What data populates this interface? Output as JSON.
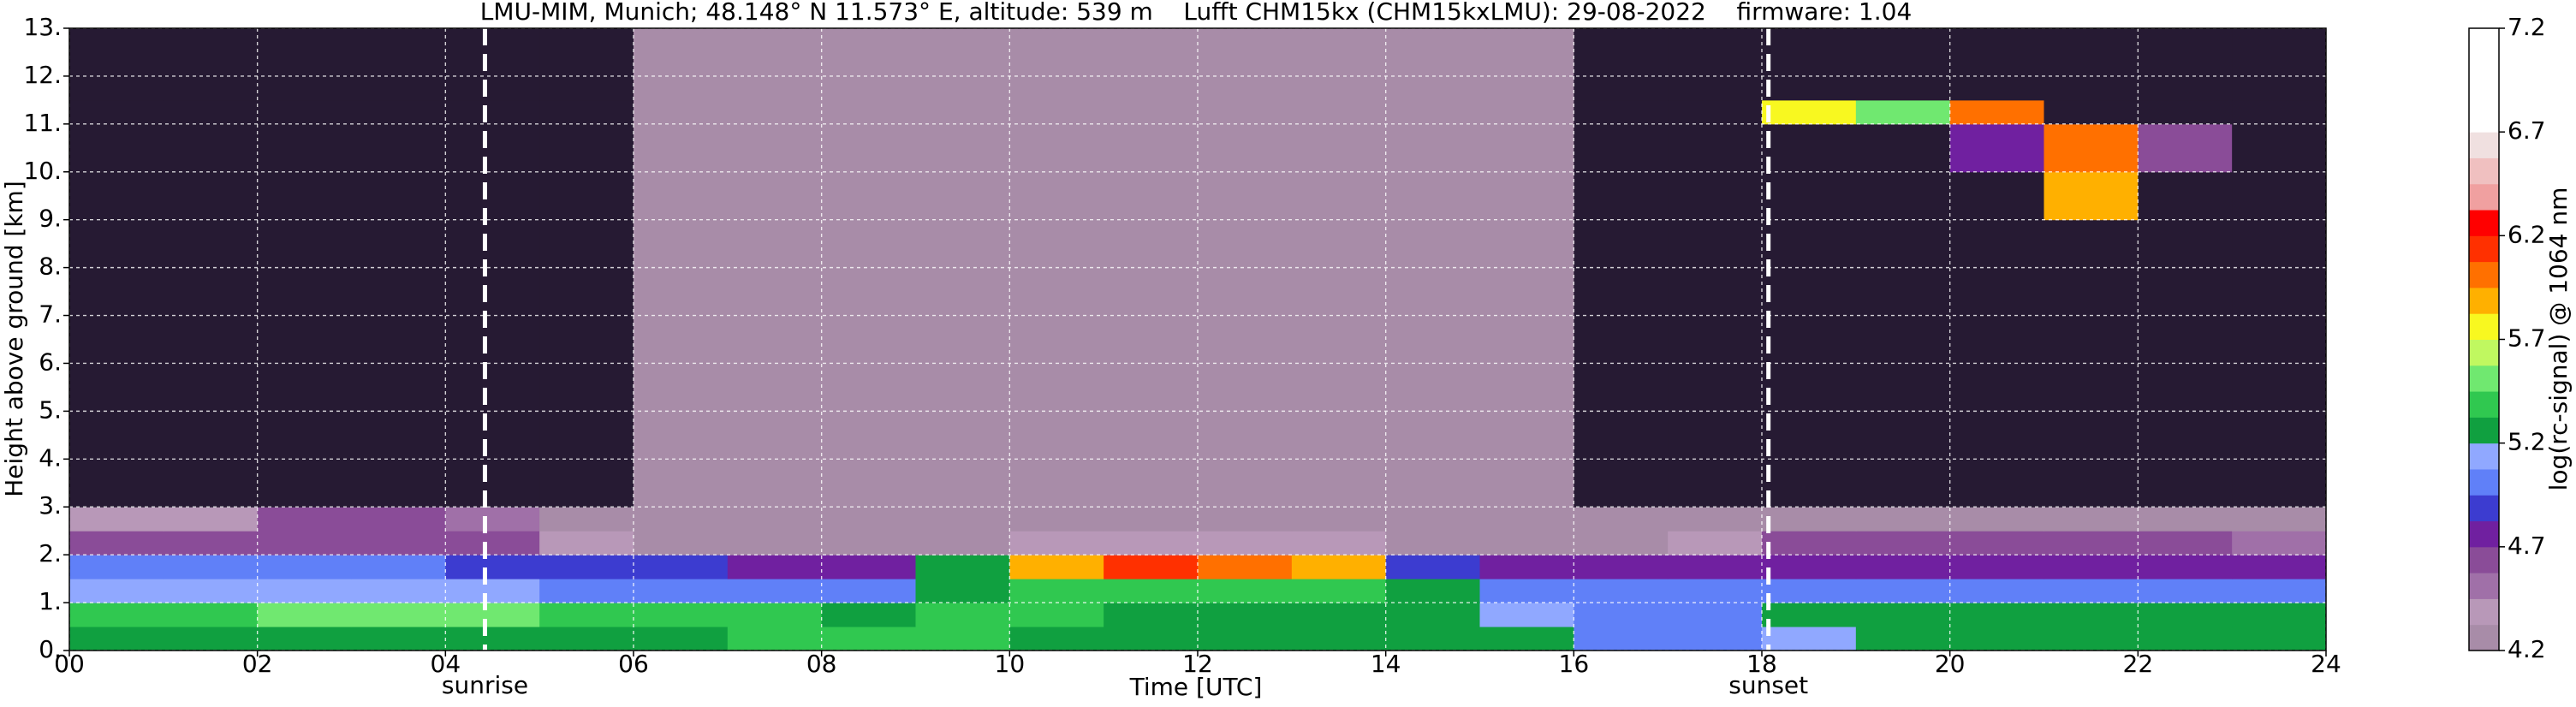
{
  "chart_data": {
    "type": "heatmap",
    "title": "LMU-MIM, Munich; 48.148° N 11.573° E, altitude: 539 m    Lufft CHM15kx (CHM15kxLMU): 29-08-2022    firmware: 1.04",
    "xlabel": "Time [UTC]",
    "ylabel": "Height above ground [km]",
    "colorbar_label": "log(rc-signal) @ 1064 nm",
    "xlim": [
      0,
      24
    ],
    "ylim": [
      0,
      13
    ],
    "xticks": [
      {
        "value": 0,
        "label": "00"
      },
      {
        "value": 2,
        "label": "02"
      },
      {
        "value": 4,
        "label": "04"
      },
      {
        "value": 6,
        "label": "06"
      },
      {
        "value": 8,
        "label": "08"
      },
      10,
      12,
      14,
      16,
      18,
      20,
      22,
      24
    ],
    "yticks": [
      {
        "value": 0,
        "label": "0."
      },
      {
        "value": 1,
        "label": "1."
      },
      {
        "value": 2,
        "label": "2."
      },
      {
        "value": 3,
        "label": "3."
      },
      {
        "value": 4,
        "label": "4."
      },
      {
        "value": 5,
        "label": "5."
      },
      {
        "value": 6,
        "label": "6."
      },
      {
        "value": 7,
        "label": "7."
      },
      {
        "value": 8,
        "label": "8."
      },
      {
        "value": 9,
        "label": "9."
      },
      {
        "value": 10,
        "label": "10."
      },
      {
        "value": 11,
        "label": "11."
      },
      {
        "value": 12,
        "label": "12."
      },
      {
        "value": 13,
        "label": "13."
      }
    ],
    "grid": true,
    "annotations": [
      {
        "text": "sunrise",
        "x": 4.42
      },
      {
        "text": "sunset",
        "x": 18.07
      }
    ],
    "clim": [
      4.2,
      7.2
    ],
    "colorbar_ticks": [
      4.2,
      4.7,
      5.2,
      5.7,
      6.2,
      6.7,
      7.2
    ],
    "under_color": "#261a33",
    "colors": [
      "#a88ca8",
      "#b898b8",
      "#a070a8",
      "#8a4c98",
      "#7020a0",
      "#3c3cd0",
      "#6080f8",
      "#90a8ff",
      "#10a040",
      "#30c850",
      "#70e870",
      "#c0f860",
      "#f8f820",
      "#ffb000",
      "#ff7000",
      "#ff3000",
      "#ff0000",
      "#f0a0a0",
      "#f0c0c0",
      "#f0e0e0",
      "#ffffff",
      "#ffffff",
      "#ffffff",
      "#ffffff"
    ],
    "x": [
      0,
      1,
      2,
      3,
      4,
      5,
      6,
      7,
      8,
      9,
      10,
      11,
      12,
      13,
      14,
      15,
      16,
      17,
      18,
      19,
      20,
      21,
      22,
      23,
      24
    ],
    "y": [
      0,
      0.5,
      1,
      1.5,
      2,
      2.5,
      3,
      9,
      10,
      11,
      11.5,
      13
    ],
    "z": [
      [
        5.3,
        5.3,
        5.3,
        5.3,
        5.3,
        5.3,
        5.3,
        5.35,
        5.4,
        5.35,
        5.3,
        5.3,
        5.3,
        5.3,
        5.25,
        5.2,
        5.05,
        5.0,
        5.1,
        5.25,
        5.25,
        5.25,
        5.3,
        5.3
      ],
      [
        5.35,
        5.35,
        5.45,
        5.5,
        5.45,
        5.4,
        5.35,
        5.35,
        5.3,
        5.35,
        5.35,
        5.3,
        5.3,
        5.3,
        5.2,
        5.1,
        5.05,
        5.0,
        5.2,
        5.3,
        5.3,
        5.3,
        5.25,
        5.25
      ],
      [
        5.1,
        5.1,
        5.15,
        5.15,
        5.1,
        5.0,
        4.95,
        4.95,
        5.0,
        5.3,
        5.35,
        5.4,
        5.4,
        5.4,
        5.2,
        5.0,
        4.95,
        5.0,
        5.05,
        5.0,
        5.0,
        5.0,
        5.0,
        5.0
      ],
      [
        4.95,
        4.95,
        4.95,
        4.95,
        4.9,
        4.85,
        4.85,
        4.8,
        4.8,
        5.3,
        5.9,
        6.1,
        6.0,
        5.9,
        4.9,
        4.8,
        4.75,
        4.8,
        4.75,
        4.75,
        4.7,
        4.7,
        4.7,
        4.7
      ],
      [
        4.65,
        4.6,
        4.6,
        4.6,
        4.6,
        4.4,
        4.3,
        4.3,
        4.3,
        4.3,
        4.35,
        4.4,
        4.4,
        4.35,
        4.3,
        4.3,
        4.3,
        4.4,
        4.6,
        4.6,
        4.6,
        4.6,
        4.6,
        4.55
      ],
      [
        4.35,
        4.35,
        4.6,
        4.6,
        4.5,
        4.3,
        4.25,
        4.25,
        4.25,
        4.25,
        4.25,
        4.3,
        4.3,
        4.3,
        4.25,
        4.2,
        4.2,
        4.2,
        4.3,
        4.3,
        4.3,
        4.3,
        4.3,
        4.3
      ],
      [
        4.1,
        4.1,
        4.1,
        4.1,
        4.1,
        4.15,
        4.2,
        4.2,
        4.2,
        4.3,
        4.25,
        4.3,
        4.3,
        4.3,
        4.2,
        4.2,
        4.15,
        4.1,
        4.1,
        4.1,
        4.1,
        4.1,
        4.1,
        4.1
      ],
      [
        4.1,
        4.1,
        4.1,
        4.1,
        4.1,
        4.15,
        4.2,
        4.2,
        4.2,
        4.3,
        4.25,
        4.3,
        4.3,
        4.3,
        4.2,
        4.2,
        4.15,
        4.1,
        4.1,
        4.1,
        4.1,
        5.9,
        4.1,
        4.1
      ],
      [
        4.1,
        4.1,
        4.1,
        4.1,
        4.1,
        4.15,
        4.2,
        4.2,
        4.2,
        4.3,
        4.25,
        4.3,
        4.3,
        4.3,
        4.2,
        4.2,
        4.15,
        4.1,
        4.1,
        4.1,
        4.8,
        6.0,
        4.6,
        4.1
      ],
      [
        4.1,
        4.1,
        4.1,
        4.1,
        4.1,
        4.15,
        4.2,
        4.2,
        4.2,
        4.3,
        4.25,
        4.3,
        4.3,
        4.3,
        4.2,
        4.2,
        4.15,
        4.1,
        5.8,
        5.5,
        6.0,
        4.1,
        4.1,
        4.1
      ],
      [
        4.1,
        4.1,
        4.1,
        4.1,
        4.1,
        4.15,
        4.2,
        4.2,
        4.2,
        4.3,
        4.25,
        4.3,
        4.3,
        4.3,
        4.2,
        4.2,
        4.15,
        4.1,
        4.1,
        4.1,
        4.1,
        4.1,
        4.1,
        4.1
      ]
    ]
  }
}
